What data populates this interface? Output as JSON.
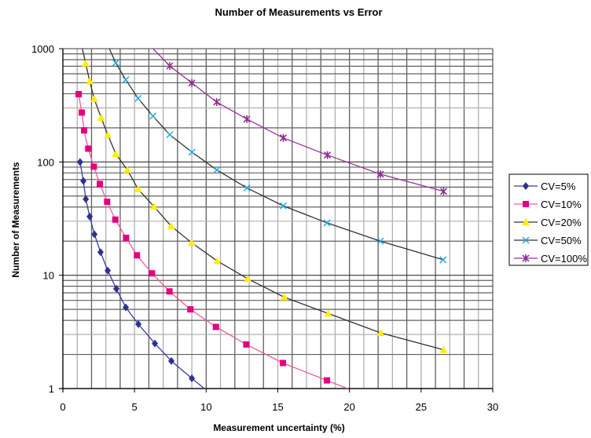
{
  "chart_data": {
    "type": "line",
    "title": "Number of Measurements vs Error",
    "xlabel": "Measurement uncertainty (%)",
    "ylabel": "Number of Measurements",
    "xlim": [
      0,
      30
    ],
    "ylim": [
      1,
      1000
    ],
    "yscale": "log",
    "xticks": [
      0,
      5,
      10,
      15,
      20,
      25,
      30
    ],
    "yticks": [
      1,
      10,
      100,
      1000
    ],
    "ytick_labels": [
      "1",
      "10",
      "100",
      "1000"
    ],
    "grid": true,
    "legend": "right",
    "series": [
      {
        "name": "CV=5%",
        "color": "#2E3192",
        "line_color": "#3B3B9E",
        "marker": "diamond",
        "x": [
          1.2,
          1.43,
          1.6,
          1.87,
          2.2,
          2.63,
          3.13,
          3.73,
          4.39,
          5.27,
          6.42,
          7.57,
          9.0
        ],
        "y": [
          100,
          68,
          47,
          33,
          23,
          16,
          11,
          7.6,
          5.2,
          3.7,
          2.5,
          1.75,
          1.23
        ],
        "line_end": [
          10.0,
          0.97
        ]
      },
      {
        "name": "CV=10%",
        "color": "#E6007E",
        "line_color": "#F05A9B",
        "marker": "square",
        "x": [
          1.1,
          1.32,
          1.48,
          1.77,
          2.16,
          2.58,
          3.09,
          3.66,
          4.41,
          5.17,
          6.22,
          7.44,
          8.9,
          10.68,
          12.8,
          15.36,
          18.43
        ],
        "y": [
          397,
          273,
          190,
          131,
          91,
          64,
          44.5,
          31,
          21.4,
          15,
          10.4,
          7.2,
          5.0,
          3.5,
          2.45,
          1.68,
          1.18
        ],
        "line_end": [
          20.3,
          0.95
        ]
      },
      {
        "name": "CV=20%",
        "color": "#FFEE00",
        "line_color": "#333333",
        "marker": "triangle",
        "x": [
          1.59,
          1.87,
          2.19,
          2.67,
          3.14,
          3.69,
          4.5,
          5.25,
          6.36,
          7.55,
          8.98,
          10.76,
          12.9,
          15.45,
          18.52,
          22.18,
          26.57
        ],
        "y": [
          742,
          517,
          360,
          246,
          173,
          118,
          85,
          57.6,
          40.4,
          27.2,
          19.4,
          13.4,
          9.3,
          6.4,
          4.6,
          3.1,
          2.2
        ],
        "line_start": [
          1.36,
          1000
        ]
      },
      {
        "name": "CV=50%",
        "color": "#2AA8E0",
        "line_color": "#333333",
        "marker": "x",
        "x": [
          3.69,
          4.39,
          5.25,
          6.29,
          7.46,
          9.01,
          10.75,
          12.84,
          15.38,
          18.43,
          22.16,
          26.53
        ],
        "y": [
          750,
          531,
          364,
          254,
          174,
          122,
          85,
          59,
          41,
          29,
          20,
          13.7
        ],
        "line_start": [
          3.24,
          1000
        ]
      },
      {
        "name": "CV=100%",
        "color": "#8B2A8B",
        "line_color": "#993399",
        "marker": "star",
        "x": [
          7.46,
          9.0,
          10.73,
          12.84,
          15.38,
          18.46,
          22.16,
          26.57
        ],
        "y": [
          704,
          498,
          338,
          239,
          163,
          115,
          78,
          55
        ],
        "line_start": [
          6.3,
          1000
        ]
      }
    ]
  }
}
